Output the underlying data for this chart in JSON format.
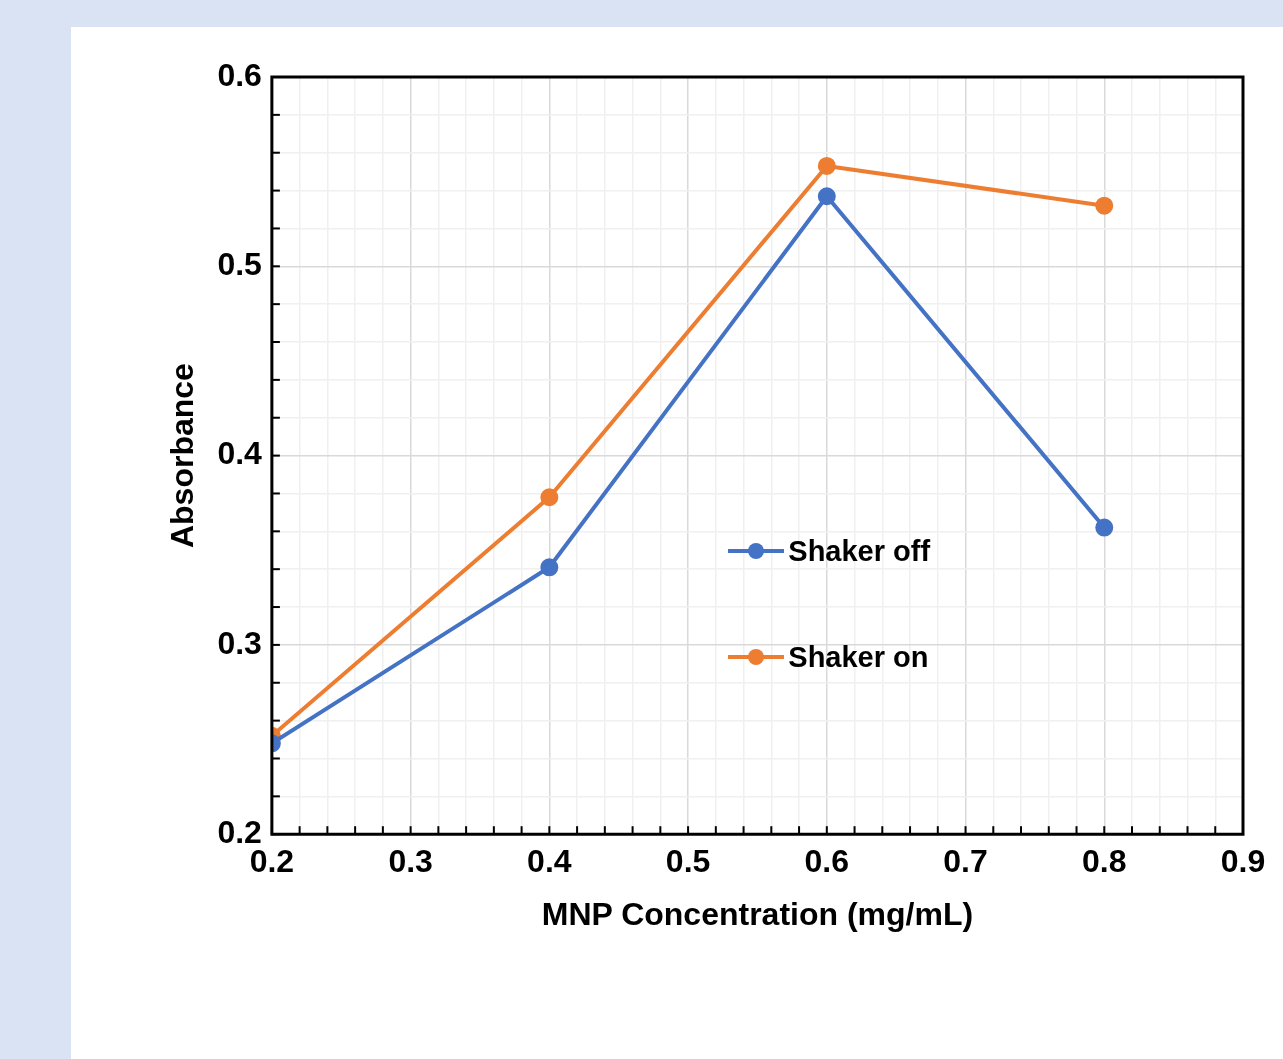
{
  "chart_data": {
    "type": "line",
    "xlabel": "MNP Concentration (mg/mL)",
    "ylabel": "Absorbance",
    "x": [
      0.2,
      0.4,
      0.6,
      0.8
    ],
    "series": [
      {
        "name": "Shaker off",
        "color": "#4472c4",
        "values": [
          0.248,
          0.341,
          0.537,
          0.362
        ]
      },
      {
        "name": "Shaker on",
        "color": "#ed7d31",
        "values": [
          0.252,
          0.378,
          0.553,
          0.532
        ]
      }
    ],
    "xlim": [
      0.2,
      0.9
    ],
    "ylim": [
      0.2,
      0.6
    ],
    "xticks": [
      0.2,
      {
        "value": 0.22,
        "label": null
      },
      {
        "value": 0.24,
        "label": null
      },
      {
        "value": 0.26,
        "label": null
      },
      {
        "value": 0.28,
        "label": null
      },
      0.3,
      {
        "value": 0.32,
        "label": null
      },
      {
        "value": 0.34,
        "label": null
      },
      {
        "value": 0.36,
        "label": null
      },
      {
        "value": 0.38,
        "label": null
      },
      0.4,
      {
        "value": 0.42,
        "label": null
      },
      {
        "value": 0.44,
        "label": null
      },
      {
        "value": 0.46,
        "label": null
      },
      {
        "value": 0.48,
        "label": null
      },
      0.5,
      {
        "value": 0.52,
        "label": null
      },
      {
        "value": 0.54,
        "label": null
      },
      {
        "value": 0.56,
        "label": null
      },
      {
        "value": 0.58,
        "label": null
      },
      0.6,
      {
        "value": 0.62,
        "label": null
      },
      {
        "value": 0.64,
        "label": null
      },
      {
        "value": 0.66,
        "label": null
      },
      {
        "value": 0.68,
        "label": null
      },
      0.7,
      {
        "value": 0.72,
        "label": null
      },
      {
        "value": 0.74,
        "label": null
      },
      {
        "value": 0.76,
        "label": null
      },
      {
        "value": 0.78,
        "label": null
      },
      0.8,
      {
        "value": 0.82,
        "label": null
      },
      {
        "value": 0.84,
        "label": null
      },
      {
        "value": 0.86,
        "label": null
      },
      {
        "value": 0.88,
        "label": null
      },
      0.9
    ],
    "yticks": [
      0.2,
      {
        "value": 0.22,
        "label": null
      },
      {
        "value": 0.24,
        "label": null
      },
      {
        "value": 0.26,
        "label": null
      },
      {
        "value": 0.28,
        "label": null
      },
      0.3,
      {
        "value": 0.32,
        "label": null
      },
      {
        "value": 0.34,
        "label": null
      },
      {
        "value": 0.36,
        "label": null
      },
      {
        "value": 0.38,
        "label": null
      },
      0.4,
      {
        "value": 0.42,
        "label": null
      },
      {
        "value": 0.44,
        "label": null
      },
      {
        "value": 0.46,
        "label": null
      },
      {
        "value": 0.48,
        "label": null
      },
      0.5,
      {
        "value": 0.52,
        "label": null
      },
      {
        "value": 0.54,
        "label": null
      },
      {
        "value": 0.56,
        "label": null
      },
      {
        "value": 0.58,
        "label": null
      },
      0.6
    ],
    "grid": true,
    "legend": "center",
    "marker": "circle",
    "line_style": "solid"
  }
}
